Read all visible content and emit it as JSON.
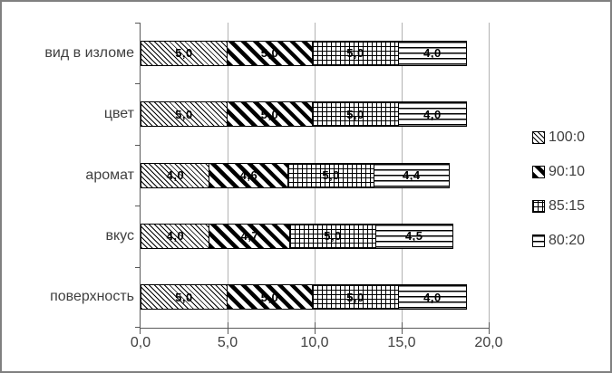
{
  "chart_data": {
    "type": "bar",
    "orientation": "horizontal",
    "stacked": true,
    "title": "",
    "xlabel": "",
    "ylabel": "",
    "categories": [
      "вид в изломе",
      "цвет",
      "аромат",
      "вкус",
      "поверхность"
    ],
    "series": [
      {
        "name": "100:0",
        "pattern": "fine-diagonal",
        "values": [
          5.0,
          5.0,
          4.0,
          4.0,
          5.0
        ]
      },
      {
        "name": "90:10",
        "pattern": "bold-diagonal",
        "values": [
          5.0,
          5.0,
          4.6,
          4.7,
          5.0
        ]
      },
      {
        "name": "85:15",
        "pattern": "grid",
        "values": [
          5.0,
          5.0,
          5.0,
          5.0,
          5.0
        ]
      },
      {
        "name": "80:20",
        "pattern": "horizontal",
        "values": [
          4.0,
          4.0,
          4.4,
          4.5,
          4.0
        ]
      }
    ],
    "x_tick_labels": [
      "0,0",
      "5,0",
      "10,0",
      "15,0",
      "20,0"
    ],
    "x_tick_values": [
      0,
      5,
      10,
      15,
      20
    ],
    "xlim": [
      0,
      20
    ],
    "grid": true,
    "legend_position": "right",
    "decimal_separator": ","
  },
  "colors": {
    "bar_fill": "#ffffff",
    "pattern_ink": "#000000",
    "gridline": "#b3b3b3",
    "axis": "#595959",
    "text": "#3f3f3f",
    "frame_border": "#808080"
  }
}
